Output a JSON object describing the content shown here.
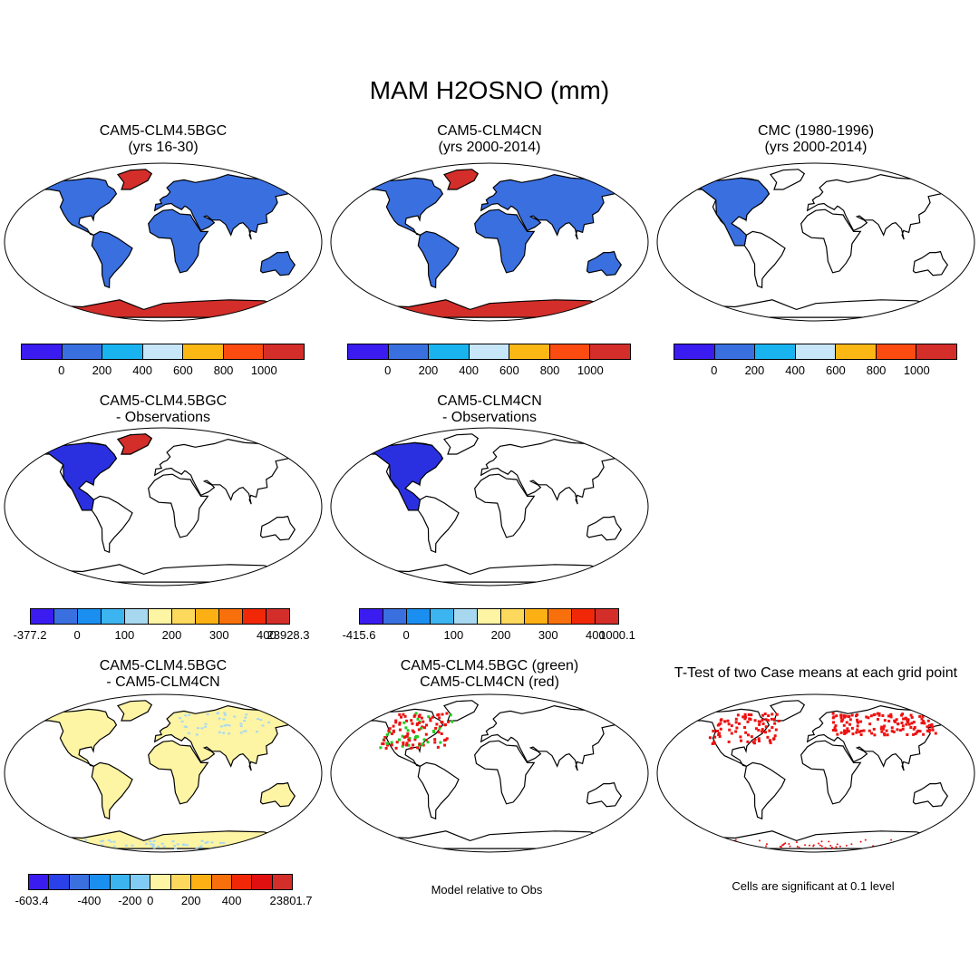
{
  "title": "MAM H2OSNO (mm)",
  "panels": [
    {
      "line1": "CAM5-CLM4.5BGC",
      "line2": "(yrs 16-30)"
    },
    {
      "line1": "CAM5-CLM4CN",
      "line2": "(yrs 2000-2014)"
    },
    {
      "line1": "CMC (1980-1996)",
      "line2": "(yrs 2000-2014)"
    },
    {
      "line1": "CAM5-CLM4.5BGC",
      "line2": "- Observations"
    },
    {
      "line1": "CAM5-CLM4CN",
      "line2": "- Observations"
    },
    {
      "line1": "CAM5-CLM4.5BGC",
      "line2": "- CAM5-CLM4CN"
    },
    {
      "line1": "CAM5-CLM4.5BGC (green)",
      "line2": "CAM5-CLM4CN (red)"
    },
    {
      "line1": "T-Test of two Case means at each grid point",
      "line2": ""
    }
  ],
  "colorbars": {
    "abs": {
      "colors": [
        "#3a1cf0",
        "#3a6fe0",
        "#19b4f0",
        "#c7e6f8",
        "#fbb714",
        "#fb4b10",
        "#d32e2a"
      ],
      "labels": [
        "0",
        "200",
        "400",
        "600",
        "800",
        "1000"
      ]
    },
    "diff1": {
      "colors": [
        "#3a1cf0",
        "#3a6fe0",
        "#1a8ff0",
        "#3cb4f0",
        "#a8d8f0",
        "#fdf4a4",
        "#fcd85c",
        "#fcb014",
        "#f8700c",
        "#f02808",
        "#d32e2a"
      ],
      "labels": [
        "-377.2",
        "0",
        "100",
        "200",
        "300",
        "400",
        "23928.3"
      ]
    },
    "diff2": {
      "colors": [
        "#3a1cf0",
        "#3a6fe0",
        "#1a8ff0",
        "#3cb4f0",
        "#a8d8f0",
        "#fdf4a4",
        "#fcd85c",
        "#fcb014",
        "#f8700c",
        "#f02808",
        "#d32e2a"
      ],
      "labels": [
        "-415.6",
        "0",
        "100",
        "200",
        "300",
        "400",
        "1000.1"
      ]
    },
    "diff3": {
      "colors": [
        "#3a1cf0",
        "#2a40e8",
        "#3a6fe0",
        "#1a8ff0",
        "#3cb4f0",
        "#80ccf4",
        "#fdf4a4",
        "#fcd85c",
        "#fcb014",
        "#f8700c",
        "#f02808",
        "#e01010",
        "#d32e2a"
      ],
      "labels": [
        "-603.4",
        "-400",
        "-200",
        "0",
        "200",
        "400",
        "23801.7"
      ]
    }
  },
  "notes": {
    "model_relative": "Model relative to Obs",
    "significance": "Cells are significant at 0.1 level"
  },
  "colors": {
    "snow": "#3a6fe0",
    "ice": "#d32e2a",
    "diff_land": "#fdf4a4",
    "case1_green": "#22cc22",
    "case2_red": "#ee1111",
    "neg_diff": "#2a30e0"
  }
}
